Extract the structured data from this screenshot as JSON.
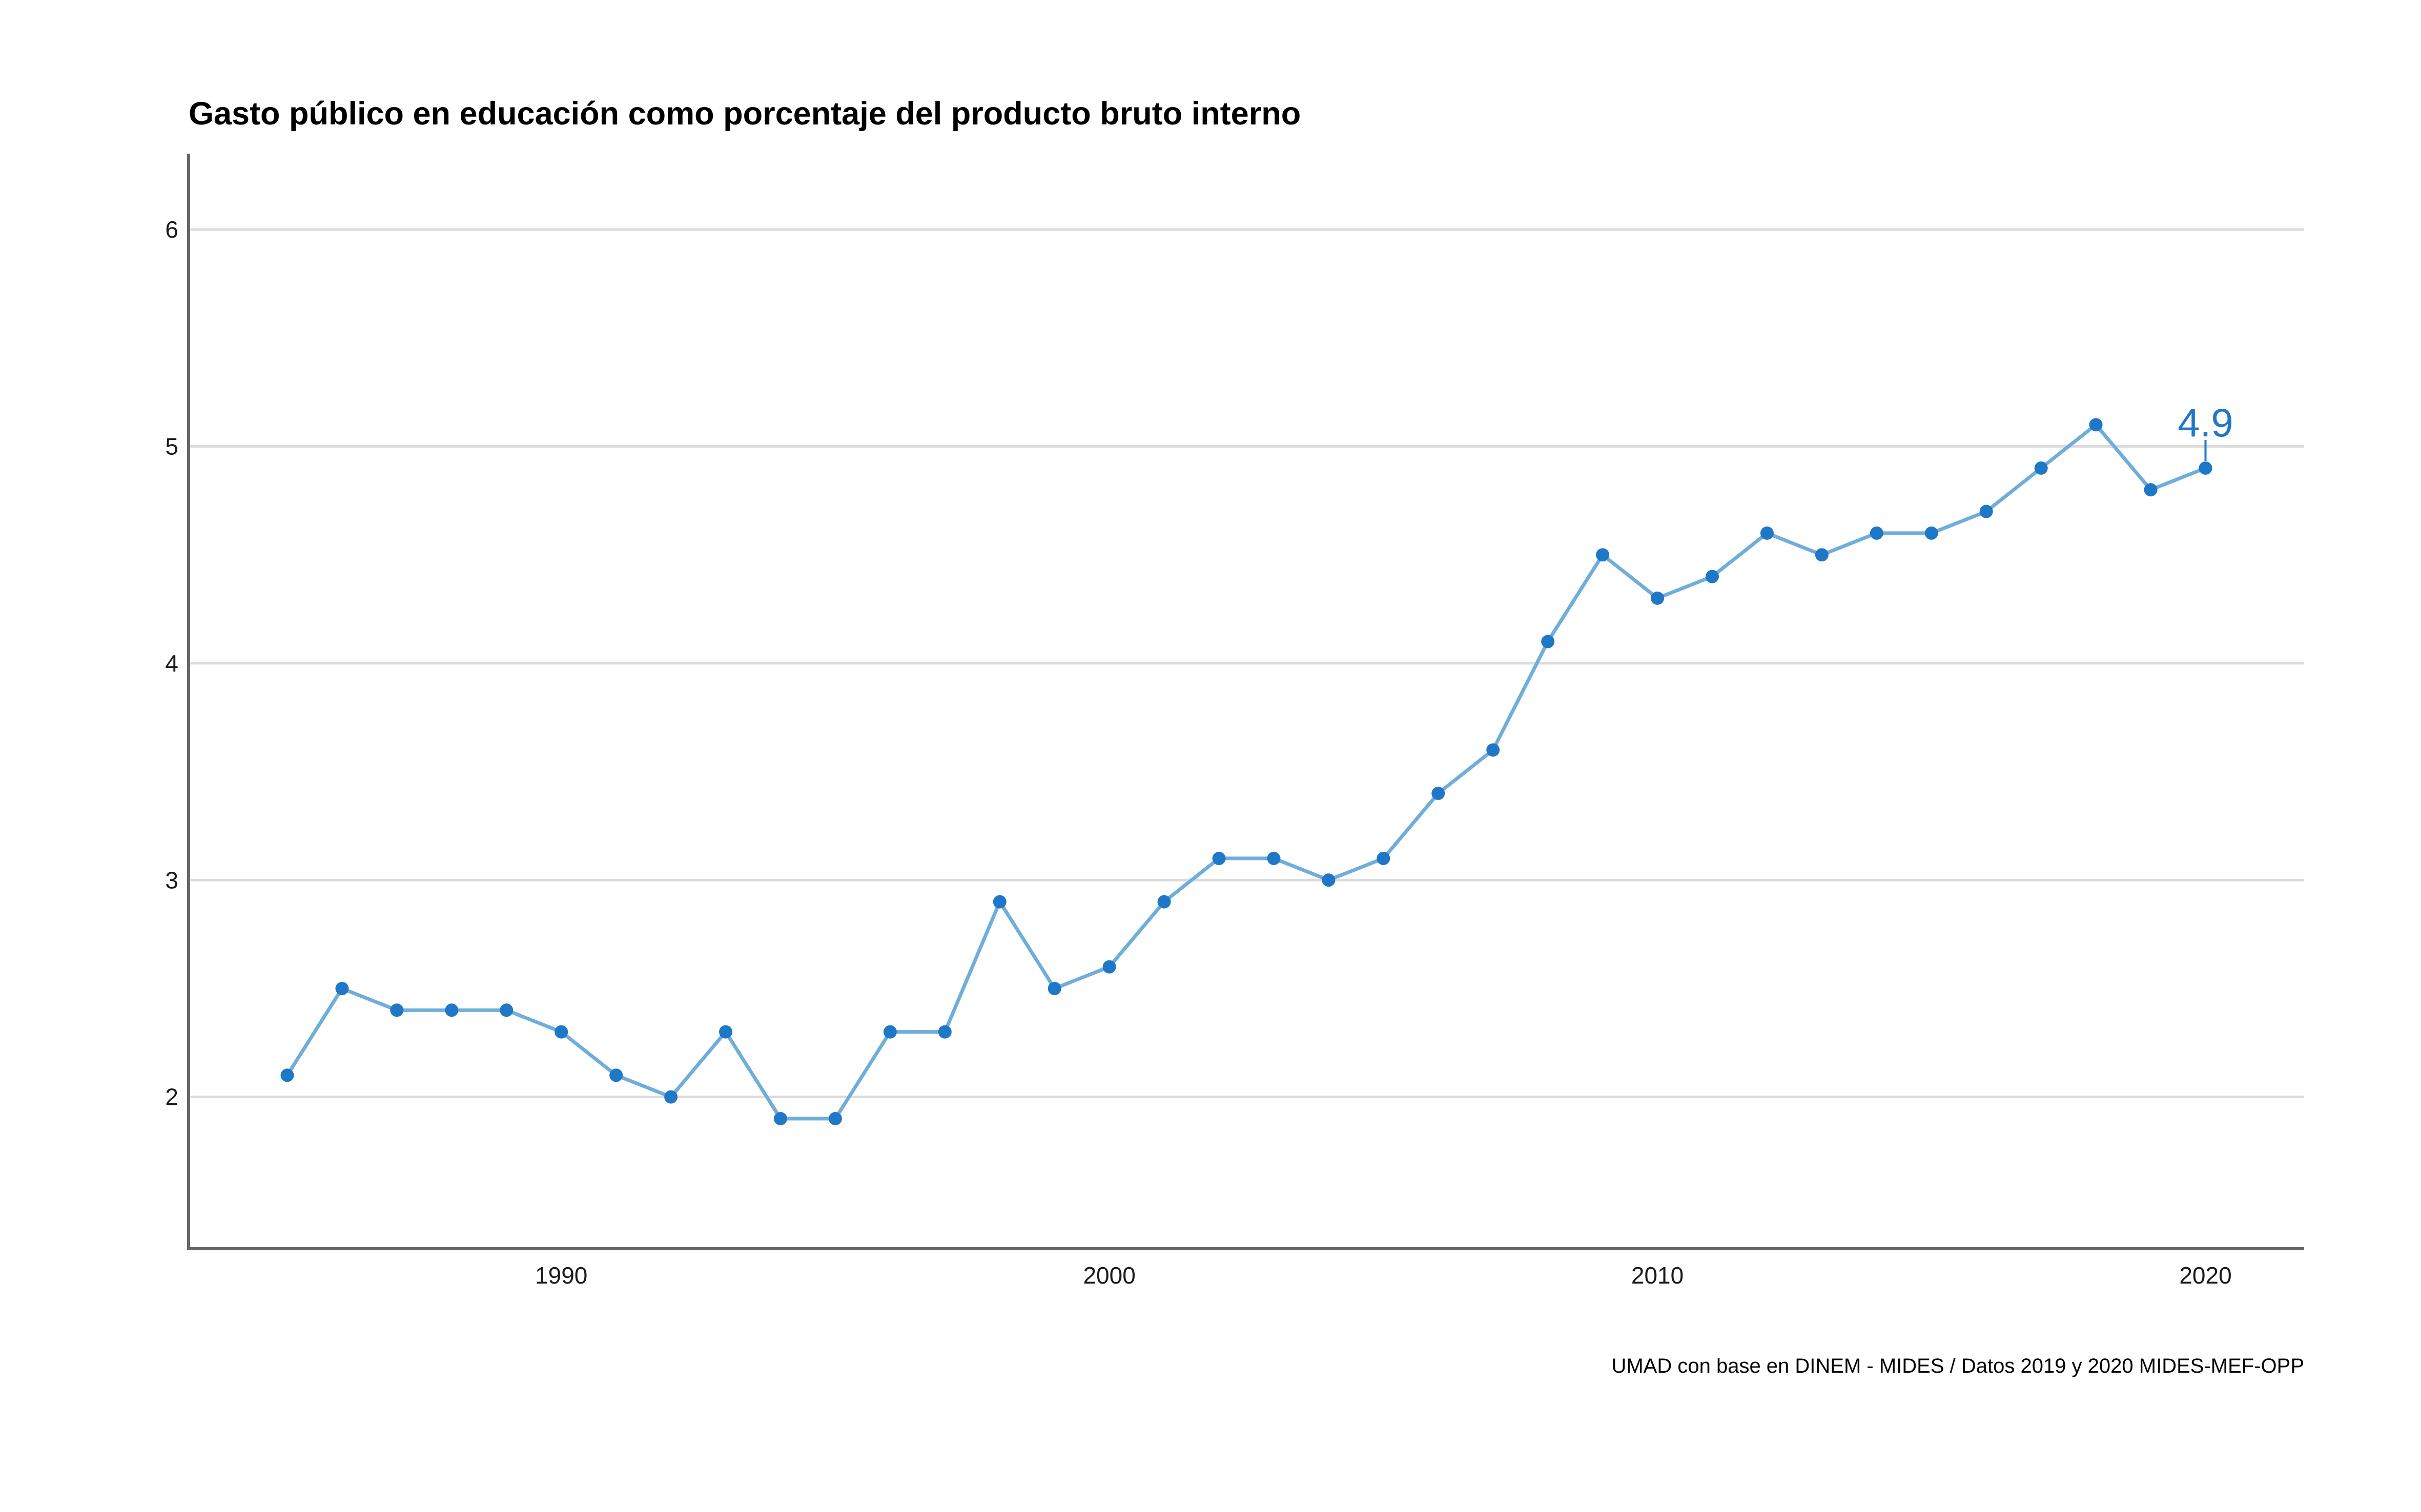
{
  "chart_data": {
    "type": "line",
    "title": "Gasto público en educación como porcentaje del producto bruto interno",
    "xlabel": "",
    "ylabel": "",
    "caption": "UMAD con base en DINEM - MIDES / Datos 2019 y 2020 MIDES-MEF-OPP",
    "x": [
      1985,
      1986,
      1987,
      1988,
      1989,
      1990,
      1991,
      1992,
      1993,
      1994,
      1995,
      1996,
      1997,
      1998,
      1999,
      2000,
      2001,
      2002,
      2003,
      2004,
      2005,
      2006,
      2007,
      2008,
      2009,
      2010,
      2011,
      2012,
      2013,
      2014,
      2015,
      2016,
      2017,
      2018,
      2019,
      2020
    ],
    "series": [
      {
        "values": [
          2.1,
          2.5,
          2.4,
          2.4,
          2.4,
          2.3,
          2.1,
          2.0,
          2.3,
          1.9,
          1.9,
          2.3,
          2.3,
          2.9,
          2.5,
          2.6,
          2.9,
          3.1,
          3.1,
          3.0,
          3.1,
          3.4,
          3.6,
          4.1,
          4.5,
          4.3,
          4.4,
          4.6,
          4.5,
          4.6,
          4.6,
          4.7,
          4.9,
          5.1,
          4.8,
          4.9
        ]
      }
    ],
    "xlim": [
      1983.2,
      2021.8
    ],
    "ylim": [
      1.3,
      6.35
    ],
    "x_ticks": [
      1990,
      2000,
      2010,
      2020
    ],
    "x_tick_labels": [
      "1990",
      "2000",
      "2010",
      "2020"
    ],
    "y_ticks": [
      2,
      3,
      4,
      5,
      6
    ],
    "y_tick_labels": [
      "2",
      "3",
      "4",
      "5",
      "6"
    ],
    "grid": {
      "horizontal": true,
      "vertical": false
    },
    "annotation": {
      "x": 2020,
      "y": 4.9,
      "text": "4.9"
    },
    "colors": {
      "line": "#6fadda",
      "points": "#1f77c8",
      "annotation": "#1f77c8",
      "grid": "#dcdcdc",
      "axis": "#666666"
    }
  }
}
